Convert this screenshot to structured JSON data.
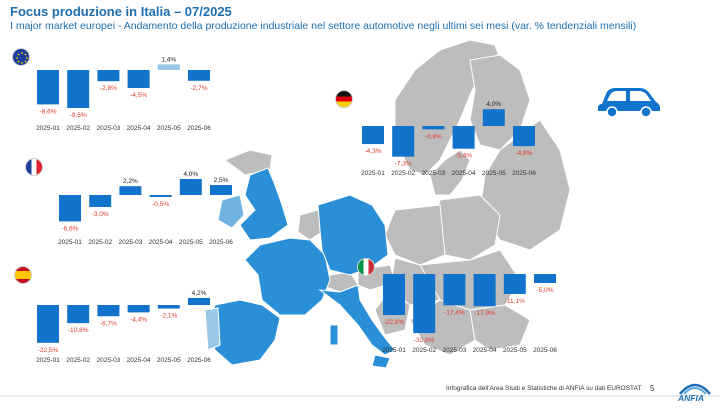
{
  "header": {
    "title": "Focus produzione in Italia – 07/2025",
    "subtitle": "I major market europei - Andamento della produzione industriale nel settore automotive negli ultimi sei mesi (var. % tendenziali mensili)"
  },
  "footer": {
    "source": "Infografica dell'Area Studi e Statistiche di ANFIA su dati EUROSTAT",
    "page": "5",
    "logo_text": "ANFIA"
  },
  "icons": [
    "eu-flag-icon",
    "germany-flag-icon",
    "france-flag-icon",
    "spain-flag-icon",
    "italy-flag-icon",
    "car-icon",
    "anfia-logo"
  ],
  "colors": {
    "bar": "#1273cc",
    "bar_light": "#9cc8e8",
    "negative_label": "#e03a2a",
    "positive_label": "#222222",
    "map_grey": "#bdbdbd",
    "map_blue": "#2a8fd6",
    "title": "#1f6fb0"
  },
  "chart_data": [
    {
      "type": "bar",
      "id": "ue",
      "categories": [
        "2025-01",
        "2025-02",
        "2025-03",
        "2025-04",
        "2025-05",
        "2025-06"
      ],
      "values": [
        -8.6,
        -9.5,
        -2.8,
        -4.5,
        1.4,
        -2.7
      ],
      "labels": [
        "-8,6%",
        "-9,5%",
        "-2,8%",
        "-4,5%",
        "1,4%",
        "-2,7%"
      ]
    },
    {
      "type": "bar",
      "id": "germania",
      "categories": [
        "2025-01",
        "2025-02",
        "2025-03",
        "2025-04",
        "2025-05",
        "2025-06"
      ],
      "values": [
        -4.3,
        -7.3,
        -0.8,
        -5.4,
        4.0,
        -4.8
      ],
      "labels": [
        "-4,3%",
        "-7,3%",
        "-0,8%",
        "-5,4%",
        "4,0%",
        "-4,8%"
      ]
    },
    {
      "type": "bar",
      "id": "francia",
      "categories": [
        "2025-01",
        "2025-02",
        "2025-03",
        "2025-04",
        "2025-05",
        "2025-06"
      ],
      "values": [
        -6.6,
        -3.0,
        2.2,
        -0.5,
        4.0,
        2.5
      ],
      "labels": [
        "-6,6%",
        "-3,0%",
        "2,2%",
        "-0,5%",
        "4,0%",
        "2,5%"
      ]
    },
    {
      "type": "bar",
      "id": "spagna",
      "categories": [
        "2025-01",
        "2025-02",
        "2025-03",
        "2025-04",
        "2025-05",
        "2025-06"
      ],
      "values": [
        -22.5,
        -10.8,
        -6.7,
        -4.4,
        -2.1,
        4.2
      ],
      "labels": [
        "-22,5%",
        "-10,8%",
        "-6,7%",
        "-4,4%",
        "-2,1%",
        "4,2%"
      ]
    },
    {
      "type": "bar",
      "id": "italia",
      "categories": [
        "2025-01",
        "2025-02",
        "2025-03",
        "2025-04",
        "2025-05",
        "2025-06"
      ],
      "values": [
        -22.8,
        -32.8,
        -17.4,
        -17.9,
        -11.1,
        -5.0
      ],
      "labels": [
        "-22,8%",
        "-32,8%",
        "-17,4%",
        "-17,9%",
        "-11,1%",
        "-5,0%"
      ]
    }
  ]
}
